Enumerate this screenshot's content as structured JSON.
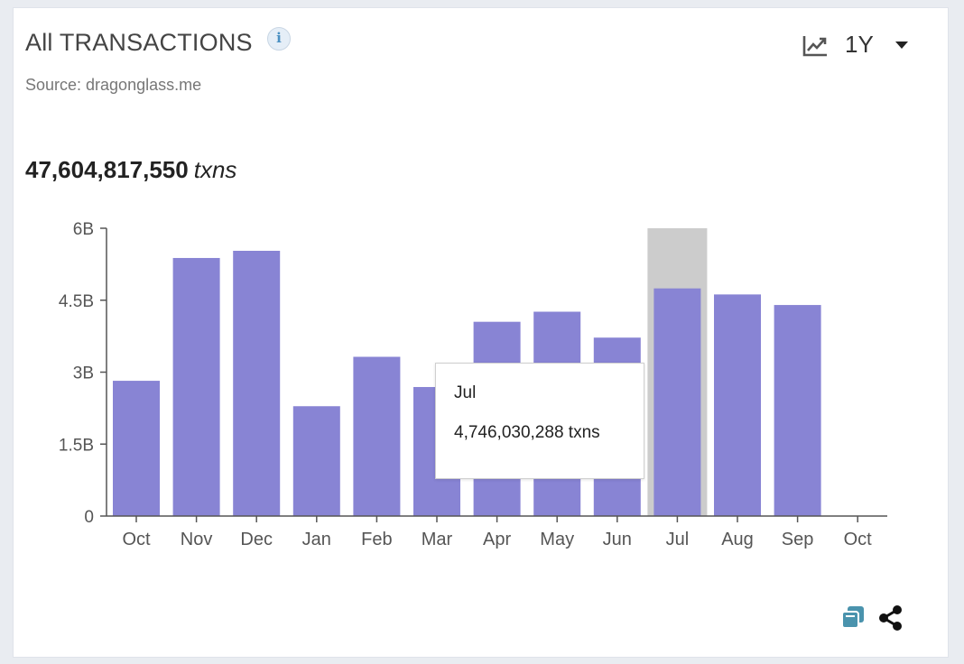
{
  "header": {
    "title": "All TRANSACTIONS",
    "info_icon": "i",
    "source": "Source: dragonglass.me",
    "range": "1Y"
  },
  "total": {
    "value": "47,604,817,550",
    "unit": "txns"
  },
  "tooltip": {
    "month": "Jul",
    "value": "4,746,030,288 txns"
  },
  "icons": {
    "chart_type": "line-chart-icon",
    "range_dropdown": "caret-down-icon",
    "info": "info-icon",
    "export": "export-icon",
    "share": "share-icon"
  },
  "colors": {
    "bar": "#8884d4",
    "highlight": "#cccccc",
    "export_icon": "#4a93ad",
    "axis": "#555555"
  },
  "chart_data": {
    "type": "bar",
    "title": "All TRANSACTIONS",
    "xlabel": "",
    "ylabel": "",
    "categories": [
      "Oct",
      "Nov",
      "Dec",
      "Jan",
      "Feb",
      "Mar",
      "Apr",
      "May",
      "Jun",
      "Jul",
      "Aug",
      "Sep",
      "Oct"
    ],
    "values": [
      2820000000,
      5380000000,
      5530000000,
      2290000000,
      3320000000,
      2690000000,
      4050000000,
      4260000000,
      3720000000,
      4746030288,
      4620000000,
      4400000000,
      0
    ],
    "yticks": [
      0,
      1500000000,
      3000000000,
      4500000000,
      6000000000
    ],
    "ytick_labels": [
      "0",
      "1.5B",
      "3B",
      "4.5B",
      "6B"
    ],
    "ylim": [
      0,
      6000000000
    ],
    "highlighted_index": 9,
    "grid": false
  }
}
